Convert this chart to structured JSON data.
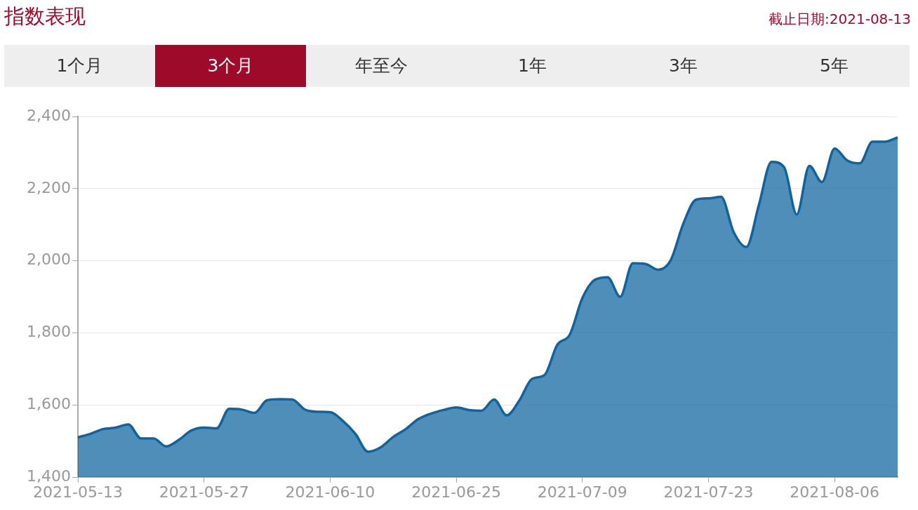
{
  "chart_data": {
    "type": "area",
    "title": "指数表现",
    "subtitle": "截止日期:2021-08-13",
    "annotations": [
      "1个月",
      "3个月",
      "年至今",
      "1年",
      "3年",
      "5年"
    ],
    "categories": [
      "2021-05-13",
      null,
      null,
      null,
      null,
      null,
      null,
      null,
      null,
      null,
      "2021-05-27",
      null,
      null,
      null,
      null,
      null,
      null,
      null,
      null,
      null,
      "2021-06-10",
      null,
      null,
      null,
      null,
      null,
      null,
      null,
      null,
      null,
      "2021-06-25",
      null,
      null,
      null,
      null,
      null,
      null,
      null,
      null,
      null,
      "2021-07-09",
      null,
      null,
      null,
      null,
      null,
      null,
      null,
      null,
      null,
      "2021-07-23",
      null,
      null,
      null,
      null,
      null,
      null,
      null,
      null,
      null,
      "2021-08-06",
      null,
      null,
      null,
      null,
      null
    ],
    "series": [
      {
        "color": "#0f64a0",
        "values": [
          1510,
          1520,
          1533,
          1537,
          1546,
          1507,
          1507,
          1485,
          1503,
          1529,
          1537,
          1535,
          1589,
          1587,
          1578,
          1613,
          1616,
          1615,
          1587,
          1581,
          1580,
          1556,
          1520,
          1470,
          1482,
          1511,
          1533,
          1561,
          1576,
          1586,
          1593,
          1586,
          1584,
          1615,
          1571,
          1612,
          1672,
          1683,
          1766,
          1795,
          1896,
          1947,
          1954,
          1900,
          1993,
          1991,
          1975,
          2001,
          2102,
          2169,
          2173,
          2177,
          2079,
          2038,
          2155,
          2274,
          2259,
          2128,
          2263,
          2218,
          2311,
          2278,
          2270,
          2330,
          2330,
          2342
        ]
      }
    ],
    "ylim": [
      1400,
      2400
    ],
    "yticks": [
      {
        "value": 1400,
        "label": "1,400"
      },
      {
        "value": 1600,
        "label": "1,600"
      },
      {
        "value": 1800,
        "label": "1,800"
      },
      {
        "value": 2000,
        "label": "2,000"
      },
      {
        "value": 2200,
        "label": "2,200"
      },
      {
        "value": 2400,
        "label": "2,400"
      }
    ],
    "grid": "y",
    "legend": false,
    "marker": "none",
    "line_style": "solid"
  }
}
